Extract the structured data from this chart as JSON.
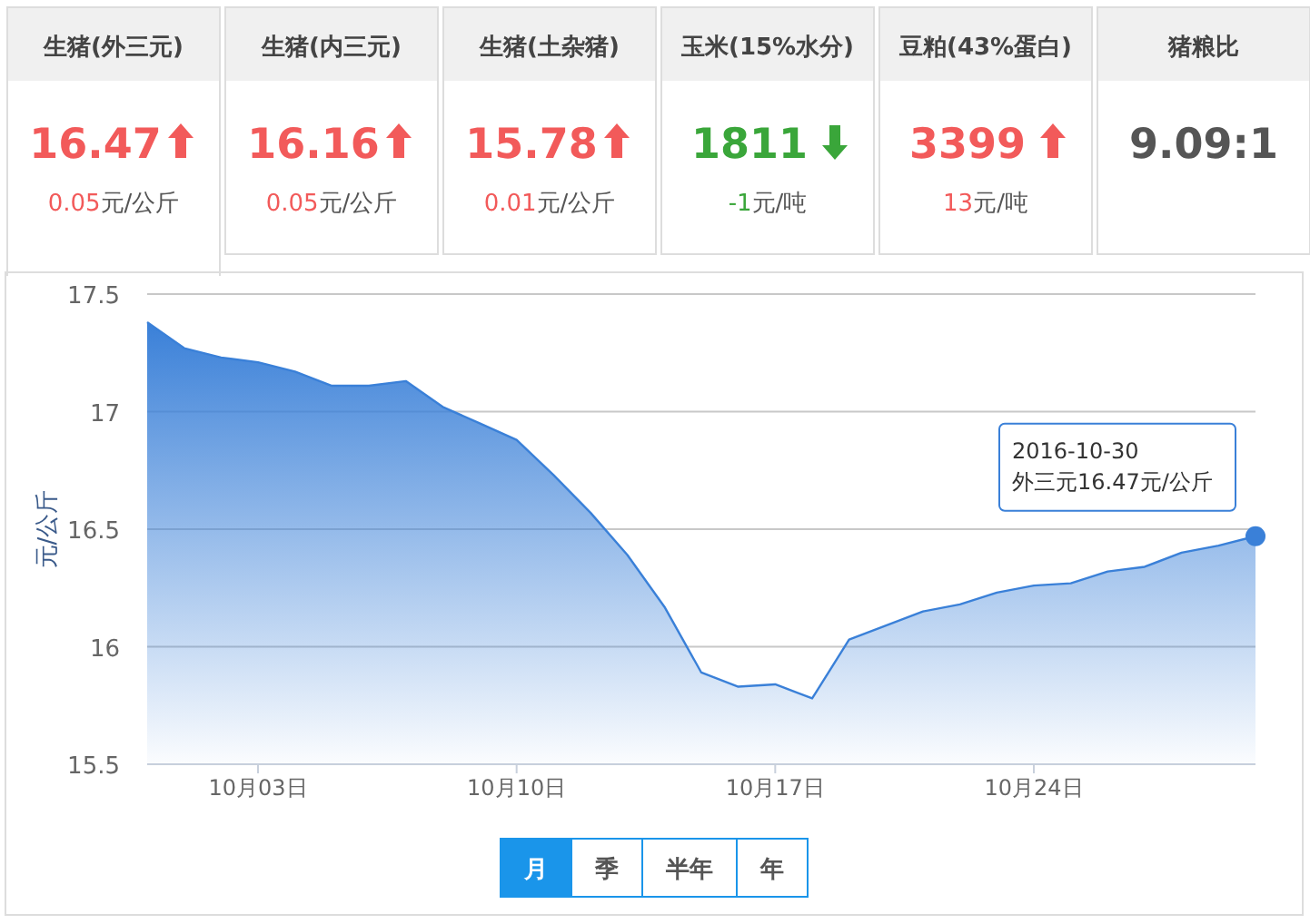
{
  "chart_data": [
    {
      "type": "other",
      "title": "生猪(外三元)",
      "annotations": [
        "16.47",
        "0.05元/公斤"
      ],
      "colors": [
        "#f25a5a"
      ]
    },
    {
      "type": "other",
      "title": "生猪(内三元)",
      "annotations": [
        "16.16",
        "0.05元/公斤"
      ],
      "colors": [
        "#f25a5a"
      ]
    },
    {
      "type": "other",
      "title": "生猪(土杂猪)",
      "annotations": [
        "15.78",
        "0.01元/公斤"
      ],
      "colors": [
        "#f25a5a"
      ]
    },
    {
      "type": "other",
      "title": "玉米(15%水分)",
      "annotations": [
        "1811",
        "-1元/吨"
      ],
      "colors": [
        "#3aa63a"
      ]
    },
    {
      "type": "other",
      "title": "豆粕(43%蛋白)",
      "annotations": [
        "3399",
        "13元/吨"
      ],
      "colors": [
        "#f25a5a"
      ]
    },
    {
      "type": "other",
      "title": "猪粮比",
      "annotations": [
        "9.09:1"
      ],
      "colors": [
        "#555555"
      ]
    },
    {
      "type": "area",
      "ylabel": "元/公斤",
      "x": [
        "2016-09-30",
        "2016-10-01",
        "2016-10-02",
        "2016-10-03",
        "2016-10-04",
        "2016-10-05",
        "2016-10-06",
        "2016-10-07",
        "2016-10-08",
        "2016-10-09",
        "2016-10-10",
        "2016-10-11",
        "2016-10-12",
        "2016-10-13",
        "2016-10-14",
        "2016-10-15",
        "2016-10-16",
        "2016-10-17",
        "2016-10-18",
        "2016-10-19",
        "2016-10-20",
        "2016-10-21",
        "2016-10-22",
        "2016-10-23",
        "2016-10-24",
        "2016-10-25",
        "2016-10-26",
        "2016-10-27",
        "2016-10-28",
        "2016-10-29",
        "2016-10-30"
      ],
      "series": [
        {
          "color": "#3a80d8",
          "values": [
            17.38,
            17.27,
            17.23,
            17.21,
            17.17,
            17.11,
            17.11,
            17.13,
            17.02,
            16.95,
            16.88,
            16.73,
            16.57,
            16.39,
            16.17,
            15.89,
            15.83,
            15.84,
            15.78,
            16.03,
            16.09,
            16.15,
            16.18,
            16.23,
            16.26,
            16.27,
            16.32,
            16.34,
            16.4,
            16.43,
            16.47
          ]
        }
      ],
      "xlim": [
        "2016-09-30",
        "2016-10-30"
      ],
      "xticks": [
        {
          "value": "2016-10-03",
          "label": "10月03日"
        },
        {
          "value": "2016-10-10",
          "label": "10月10日"
        },
        {
          "value": "2016-10-17",
          "label": "10月17日"
        },
        {
          "value": "2016-10-24",
          "label": "10月24日"
        }
      ],
      "ylim": [
        15.5,
        17.5
      ],
      "yticks": [
        15.5,
        16,
        16.5,
        17,
        17.5
      ],
      "grid": "y",
      "annotations": [
        {
          "text": "2016-10-30\n外三元16.47元/公斤",
          "x": "2016-10-30",
          "y": 16.47
        },
        "月",
        "季",
        "半年",
        "年"
      ]
    }
  ]
}
